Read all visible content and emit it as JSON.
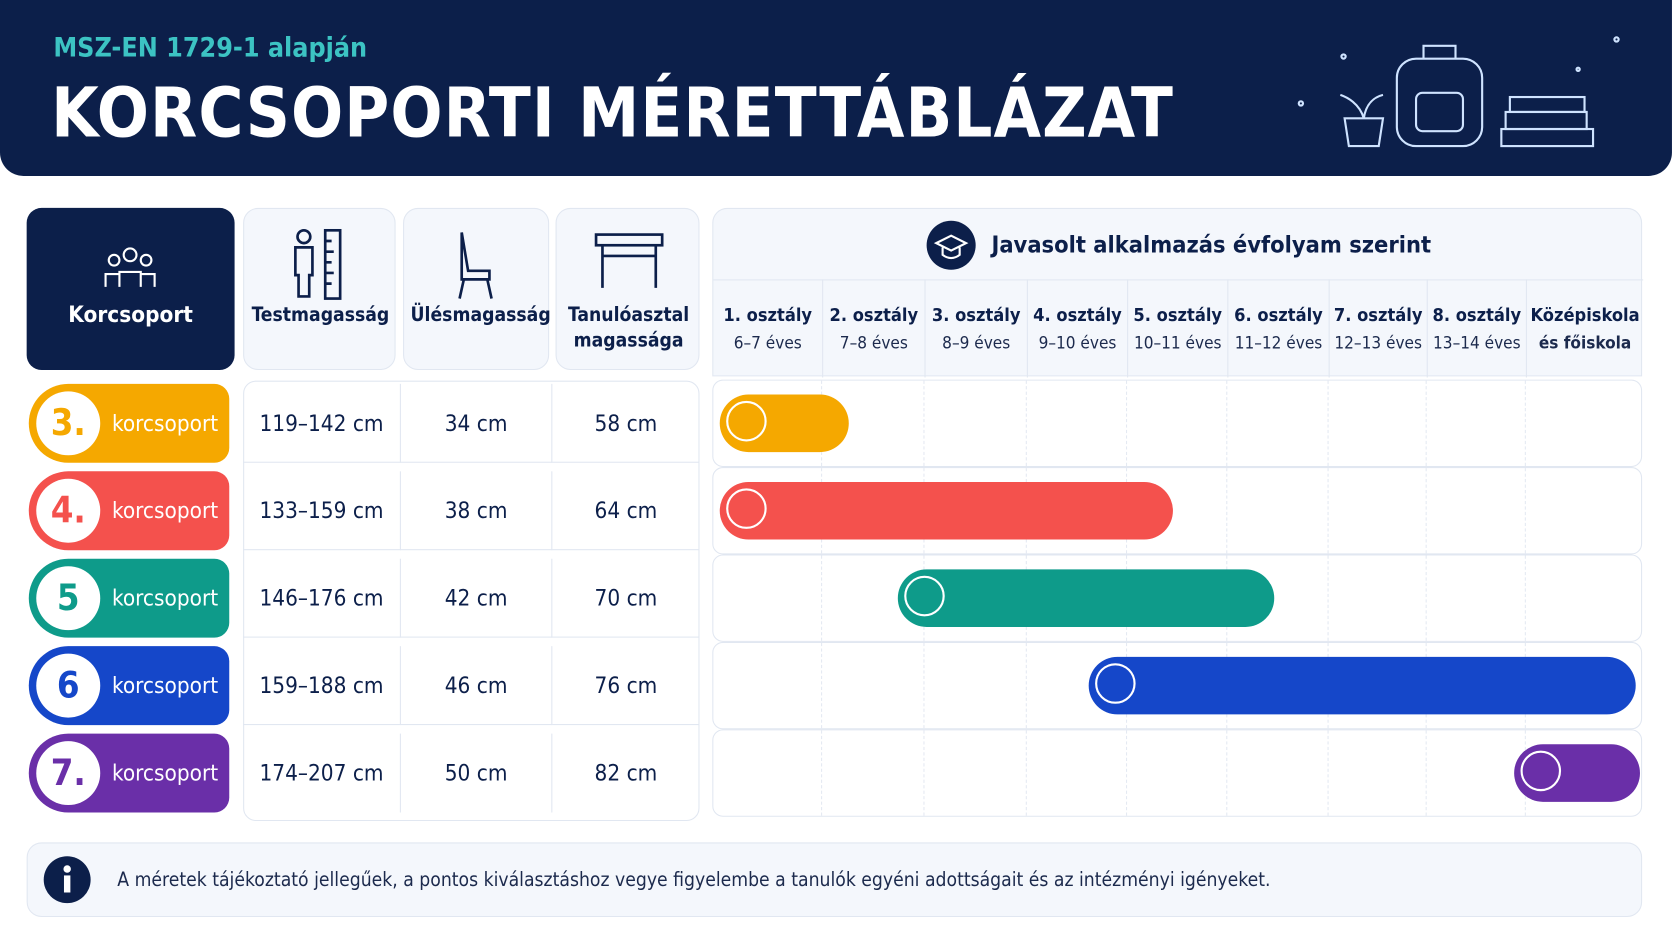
{
  "header": {
    "subtitle": "MSZ-EN 1729-1 alapján",
    "title": "KORCSOPORTI MÉRETTÁBLÁZAT"
  },
  "table": {
    "columns": [
      "Korcsoport",
      "Testmagasság",
      "Ülésmagasság",
      "Tanulóasztal magassága"
    ],
    "rows": [
      [
        "3.",
        "korcsoport",
        "119–142 cm",
        "34 cm",
        "58 cm"
      ],
      [
        "4.",
        "korcsoport",
        "133–159 cm",
        "38 cm",
        "64 cm"
      ],
      [
        "5",
        "korcsoport",
        "146–176 cm",
        "42 cm",
        "70 cm"
      ],
      [
        "6",
        "korcsoport",
        "159–188 cm",
        "46 cm",
        "76 cm"
      ],
      [
        "7.",
        "korcsoport",
        "174–207 cm",
        "50 cm",
        "82 cm"
      ]
    ]
  },
  "grades": {
    "title": "Javasolt alkalmazás évfolyam szerint",
    "columns": [
      {
        "name": "1. osztály",
        "age": "6–7 éves"
      },
      {
        "name": "2. osztály",
        "age": "7–8 éves"
      },
      {
        "name": "3. osztály",
        "age": "8–9 éves"
      },
      {
        "name": "4. osztály",
        "age": "9–10 éves"
      },
      {
        "name": "5. osztály",
        "age": "10–11 éves"
      },
      {
        "name": "6. osztály",
        "age": "11–12 éves"
      },
      {
        "name": "7. osztály",
        "age": "12–13 éves"
      },
      {
        "name": "8. osztály",
        "age": "13–14 éves"
      },
      {
        "name": "Középiskola",
        "age": "és főiskola"
      }
    ]
  },
  "note": "A méretek tájékoztató jellegűek, a pontos kiválasztáshoz vegye figyelembe a tanulók egyéni adottságait és az intézményi igényeket."
}
